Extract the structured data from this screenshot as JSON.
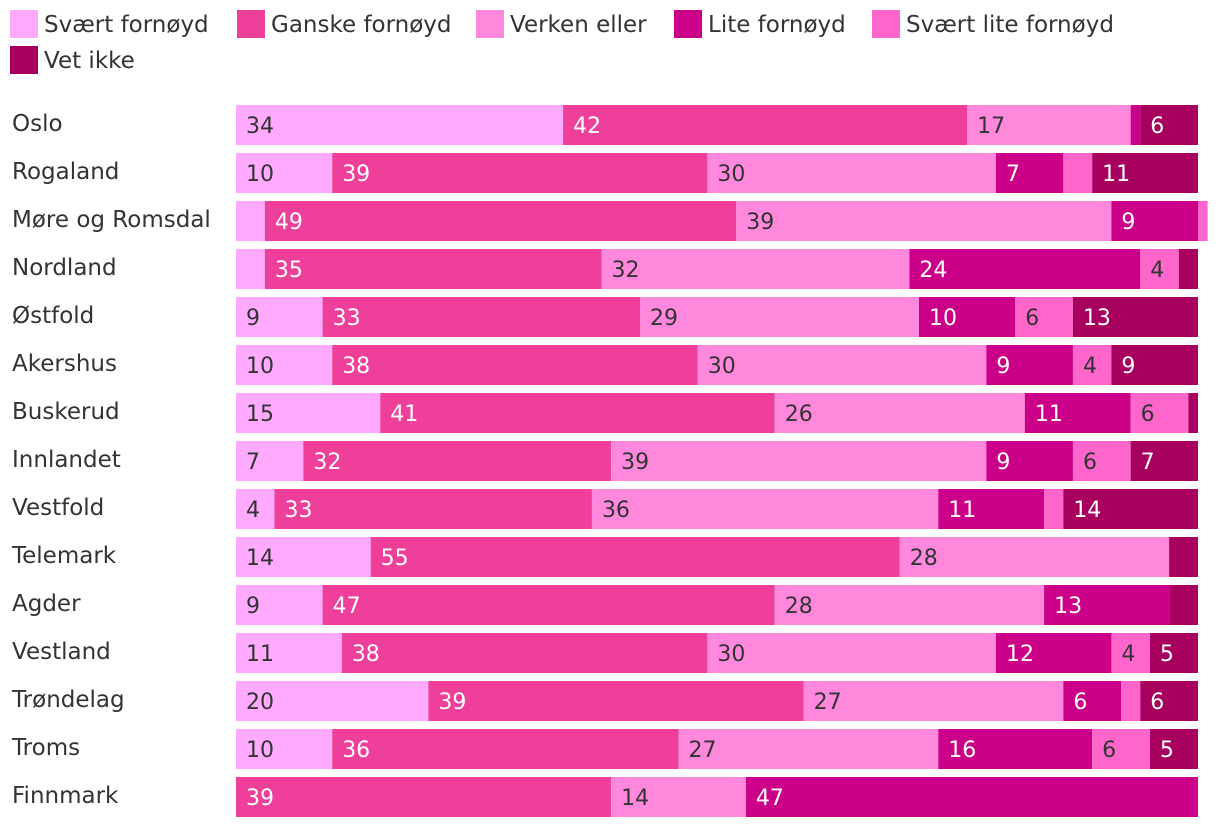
{
  "chart_data": {
    "type": "bar",
    "orientation": "horizontal",
    "stacked": true,
    "legend_position": "top-left",
    "categories": [
      "Oslo",
      "Rogaland",
      "Møre og Romsdal",
      "Nordland",
      "Østfold",
      "Akershus",
      "Buskerud",
      "Innlandet",
      "Vestfold",
      "Telemark",
      "Agder",
      "Vestland",
      "Trøndelag",
      "Troms",
      "Finnmark"
    ],
    "series": [
      {
        "name": "Svært fornøyd",
        "color": "#ffaaff",
        "values": [
          34,
          10,
          3,
          3,
          9,
          10,
          15,
          7,
          4,
          14,
          9,
          11,
          20,
          10,
          0
        ],
        "labels": [
          "34",
          "10",
          "",
          "",
          "9",
          "10",
          "15",
          "7",
          "4",
          "14",
          "9",
          "11",
          "20",
          "10",
          ""
        ]
      },
      {
        "name": "Ganske fornøyd",
        "color": "#ee3f9a",
        "values": [
          42,
          39,
          49,
          35,
          33,
          38,
          41,
          32,
          33,
          55,
          47,
          38,
          39,
          36,
          39
        ],
        "labels": [
          "42",
          "39",
          "49",
          "35",
          "33",
          "38",
          "41",
          "32",
          "33",
          "55",
          "47",
          "38",
          "39",
          "36",
          "39"
        ]
      },
      {
        "name": "Verken eller",
        "color": "#ff88dd",
        "values": [
          17,
          30,
          39,
          32,
          29,
          30,
          26,
          39,
          36,
          28,
          28,
          30,
          27,
          27,
          14
        ],
        "labels": [
          "17",
          "30",
          "39",
          "32",
          "29",
          "30",
          "26",
          "39",
          "36",
          "28",
          "28",
          "30",
          "27",
          "27",
          "14"
        ]
      },
      {
        "name": "Lite fornøyd",
        "color": "#cc0088",
        "values": [
          1,
          7,
          9,
          24,
          10,
          9,
          11,
          9,
          11,
          0,
          13,
          12,
          6,
          16,
          47
        ],
        "labels": [
          "",
          "7",
          "9",
          "24",
          "10",
          "9",
          "11",
          "9",
          "11",
          "",
          "13",
          "12",
          "6",
          "16",
          "47"
        ]
      },
      {
        "name": "Svært lite fornøyd",
        "color": "#ff66cc",
        "values": [
          0,
          3,
          1,
          4,
          6,
          4,
          6,
          6,
          2,
          0,
          0,
          4,
          2,
          6,
          0
        ],
        "labels": [
          "",
          "",
          "",
          "4",
          "6",
          "4",
          "6",
          "6",
          "",
          "",
          "",
          "4",
          "",
          "6",
          ""
        ]
      },
      {
        "name": "Vet ikke",
        "color": "#a8005e",
        "values": [
          6,
          11,
          0,
          2,
          13,
          9,
          1,
          7,
          14,
          3,
          3,
          5,
          6,
          5,
          0
        ],
        "labels": [
          "6",
          "11",
          "",
          "",
          "13",
          "9",
          "",
          "7",
          "14",
          "",
          "",
          "5",
          "6",
          "5",
          ""
        ]
      }
    ],
    "xlim": [
      0,
      100
    ],
    "grid": false
  }
}
